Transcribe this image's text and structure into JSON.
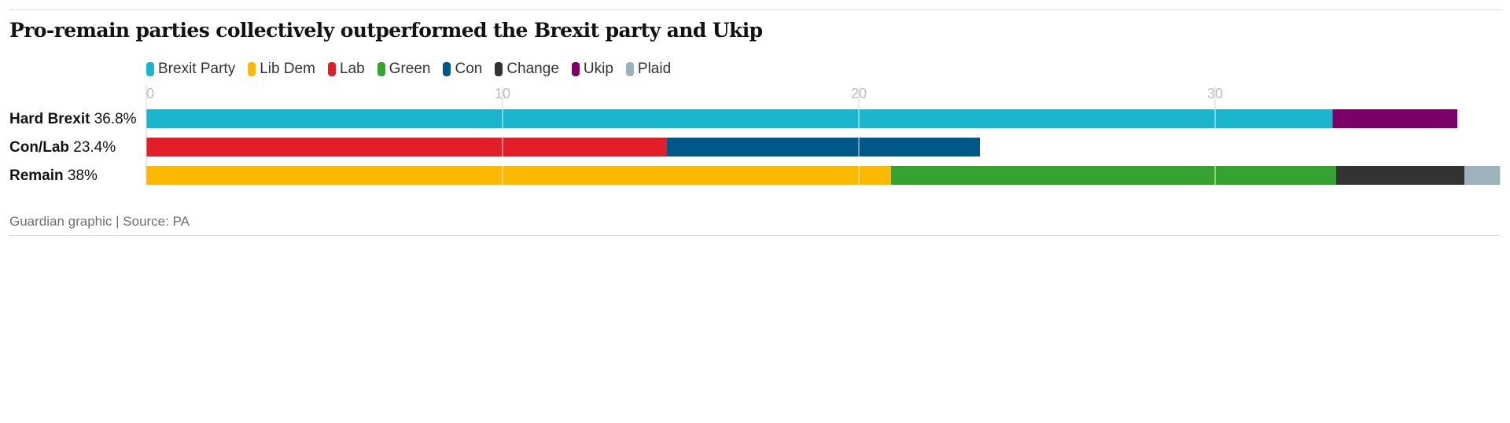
{
  "title": "Pro-remain parties collectively outperformed the Brexit party and Ukip",
  "source": "Guardian graphic | Source: PA",
  "colors": {
    "Brexit Party": "#1bb5cd",
    "Lib Dem": "#fdb900",
    "Lab": "#e11e28",
    "Green": "#36a22f",
    "Con": "#005789",
    "Change": "#333333",
    "Ukip": "#7d0068",
    "Plaid": "#9cb3bc"
  },
  "chart_data": {
    "type": "bar",
    "orientation": "horizontal",
    "stacked": true,
    "title": "Pro-remain parties collectively outperformed the Brexit party and Ukip",
    "xlim": [
      0,
      38
    ],
    "xticks": [
      0,
      10,
      20,
      30
    ],
    "grid": true,
    "legend_placement": "top",
    "legend": [
      "Brexit Party",
      "Lib Dem",
      "Lab",
      "Green",
      "Con",
      "Change",
      "Ukip",
      "Plaid"
    ],
    "categories": [
      {
        "name": "Hard Brexit",
        "total": "36.8%"
      },
      {
        "name": "Con/Lab",
        "total": "23.4%"
      },
      {
        "name": "Remain",
        "total": "38%"
      }
    ],
    "rows": [
      [
        {
          "party": "Brexit Party",
          "value": 33.3
        },
        {
          "party": "Ukip",
          "value": 3.5
        }
      ],
      [
        {
          "party": "Lab",
          "value": 14.6
        },
        {
          "party": "Con",
          "value": 8.8
        }
      ],
      [
        {
          "party": "Lib Dem",
          "value": 20.9
        },
        {
          "party": "Green",
          "value": 12.5
        },
        {
          "party": "Change",
          "value": 3.6
        },
        {
          "party": "Plaid",
          "value": 1.0
        }
      ]
    ]
  }
}
